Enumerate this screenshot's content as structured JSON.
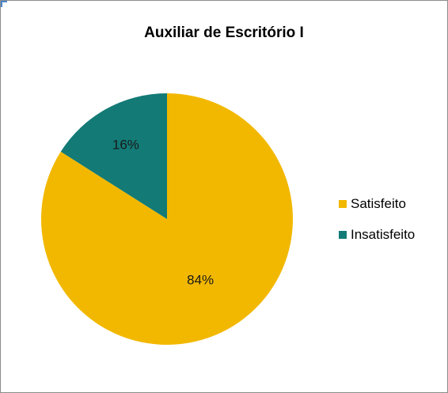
{
  "chart_data": {
    "type": "pie",
    "title": "Auxiliar de Escritório I",
    "categories": [
      "Satisfeito",
      "Insatisfeito"
    ],
    "values": [
      84,
      16
    ],
    "labels": [
      "84%",
      "16%"
    ],
    "colors": [
      "#f2b800",
      "#137a76"
    ],
    "legend_position": "right"
  }
}
